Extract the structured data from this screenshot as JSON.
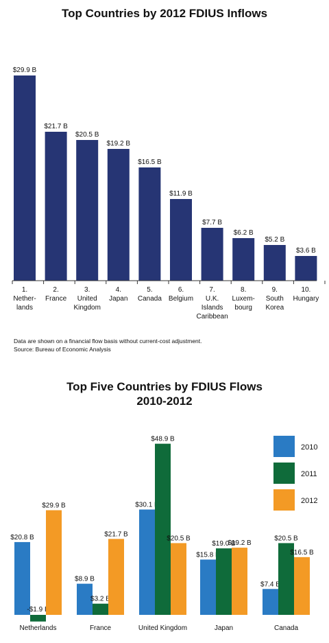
{
  "chart_data": [
    {
      "type": "bar",
      "title": "Top Countries by 2012 FDIUS Inflows",
      "categories": [
        [
          "1.",
          "Nether-",
          "lands"
        ],
        [
          "2.",
          "France"
        ],
        [
          "3.",
          "United",
          "Kingdom"
        ],
        [
          "4.",
          "Japan"
        ],
        [
          "5.",
          "Canada"
        ],
        [
          "6.",
          "Belgium"
        ],
        [
          "7.",
          "U.K.",
          "Islands",
          "Caribbean"
        ],
        [
          "8.",
          "Luxem-",
          "bourg"
        ],
        [
          "9.",
          "South",
          "Korea"
        ],
        [
          "10.",
          "Hungary"
        ]
      ],
      "values": [
        29.9,
        21.7,
        20.5,
        19.2,
        16.5,
        11.9,
        7.7,
        6.2,
        5.2,
        3.6
      ],
      "value_labels": [
        "$29.9 B",
        "$21.7 B",
        "$20.5 B",
        "$19.2 B",
        "$16.5 B",
        "$11.9 B",
        "$7.7 B",
        "$6.2 B",
        "$5.2 B",
        "$3.6 B"
      ],
      "color": "#263574",
      "notes": [
        "Data are shown on a financial flow basis without current-cost adjustment.",
        "Source: Bureau of Economic Analysis"
      ]
    },
    {
      "type": "bar",
      "title_lines": [
        "Top Five Countries by FDIUS Flows",
        "2010-2012"
      ],
      "categories": [
        "Netherlands",
        "France",
        "United Kingdom",
        "Japan",
        "Canada"
      ],
      "series": [
        {
          "name": "2010",
          "color": "#2a7bc4",
          "values": [
            20.8,
            8.9,
            30.1,
            15.8,
            7.4
          ],
          "labels": [
            "$20.8 B",
            "$8.9 B",
            "$30.1 B",
            "$15.8 B",
            "$7.4 B"
          ]
        },
        {
          "name": "2011",
          "color": "#0f6b3a",
          "values": [
            -1.9,
            3.2,
            48.9,
            19.0,
            20.5
          ],
          "labels": [
            "-$1.9 B",
            "$3.2 B",
            "$48.9 B",
            "$19.0 B",
            "$20.5 B"
          ]
        },
        {
          "name": "2012",
          "color": "#f39a25",
          "values": [
            29.9,
            21.7,
            20.5,
            19.2,
            16.5
          ],
          "labels": [
            "$29.9 B",
            "$21.7 B",
            "$20.5 B",
            "$19.2 B",
            "$16.5 B"
          ]
        }
      ]
    }
  ]
}
